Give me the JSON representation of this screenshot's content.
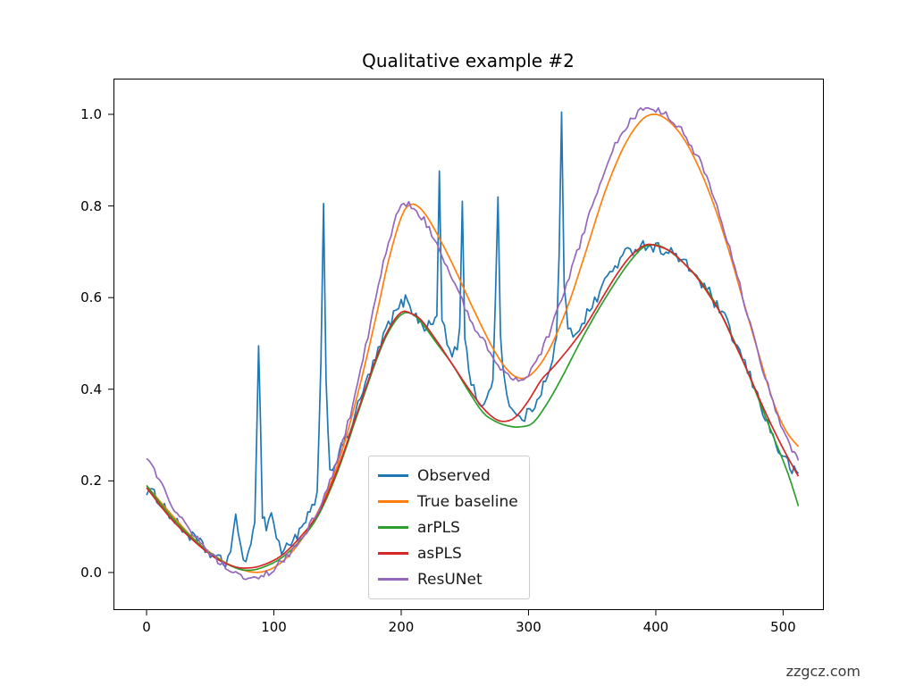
{
  "page": {
    "watermark": "zzgcz.com"
  },
  "chart_data": {
    "type": "line",
    "title": "Qualitative example #2",
    "xlabel": "",
    "ylabel": "",
    "grid": false,
    "xlim": [
      -26,
      532
    ],
    "ylim": [
      -0.082,
      1.078
    ],
    "xticks": [
      0,
      100,
      200,
      300,
      400,
      500
    ],
    "xtick_labels": [
      "0",
      "100",
      "200",
      "300",
      "400",
      "500"
    ],
    "yticks": [
      0.0,
      0.2,
      0.4,
      0.6,
      0.8,
      1.0
    ],
    "ytick_labels": [
      "0.0",
      "0.2",
      "0.4",
      "0.6",
      "0.8",
      "1.0"
    ],
    "legend": {
      "position": "lower center-left inside axes",
      "border_color": "#cccccc"
    },
    "axes_color": "#000000",
    "series": [
      {
        "name": "Observed",
        "color": "#1f77b4",
        "interp": "linear",
        "noise": 0.013,
        "points": [
          [
            0,
            0.18
          ],
          [
            8,
            0.165
          ],
          [
            16,
            0.135
          ],
          [
            24,
            0.105
          ],
          [
            32,
            0.085
          ],
          [
            40,
            0.068
          ],
          [
            48,
            0.045
          ],
          [
            56,
            0.028
          ],
          [
            62,
            0.02
          ],
          [
            66,
            0.05
          ],
          [
            70,
            0.115
          ],
          [
            74,
            0.06
          ],
          [
            78,
            0.02
          ],
          [
            82,
            0.05
          ],
          [
            85,
            0.12
          ],
          [
            88,
            0.5
          ],
          [
            91,
            0.13
          ],
          [
            94,
            0.1
          ],
          [
            98,
            0.13
          ],
          [
            102,
            0.08
          ],
          [
            106,
            0.045
          ],
          [
            110,
            0.055
          ],
          [
            115,
            0.075
          ],
          [
            120,
            0.085
          ],
          [
            125,
            0.11
          ],
          [
            130,
            0.14
          ],
          [
            134,
            0.17
          ],
          [
            137,
            0.45
          ],
          [
            139,
            0.795
          ],
          [
            141,
            0.42
          ],
          [
            144,
            0.22
          ],
          [
            148,
            0.24
          ],
          [
            153,
            0.27
          ],
          [
            158,
            0.3
          ],
          [
            164,
            0.345
          ],
          [
            170,
            0.395
          ],
          [
            176,
            0.44
          ],
          [
            182,
            0.48
          ],
          [
            188,
            0.53
          ],
          [
            194,
            0.56
          ],
          [
            200,
            0.585
          ],
          [
            205,
            0.6
          ],
          [
            210,
            0.565
          ],
          [
            215,
            0.545
          ],
          [
            220,
            0.535
          ],
          [
            225,
            0.545
          ],
          [
            228,
            0.56
          ],
          [
            230,
            0.875
          ],
          [
            232,
            0.56
          ],
          [
            236,
            0.5
          ],
          [
            240,
            0.47
          ],
          [
            244,
            0.49
          ],
          [
            246,
            0.54
          ],
          [
            248,
            0.81
          ],
          [
            250,
            0.52
          ],
          [
            253,
            0.44
          ],
          [
            257,
            0.4
          ],
          [
            261,
            0.375
          ],
          [
            265,
            0.36
          ],
          [
            269,
            0.385
          ],
          [
            272,
            0.43
          ],
          [
            274,
            0.6
          ],
          [
            276,
            0.815
          ],
          [
            278,
            0.52
          ],
          [
            281,
            0.42
          ],
          [
            285,
            0.37
          ],
          [
            289,
            0.345
          ],
          [
            293,
            0.335
          ],
          [
            297,
            0.34
          ],
          [
            301,
            0.35
          ],
          [
            305,
            0.37
          ],
          [
            310,
            0.4
          ],
          [
            315,
            0.425
          ],
          [
            319,
            0.46
          ],
          [
            322,
            0.52
          ],
          [
            324,
            0.7
          ],
          [
            326,
            1.0
          ],
          [
            328,
            0.62
          ],
          [
            331,
            0.53
          ],
          [
            335,
            0.52
          ],
          [
            340,
            0.535
          ],
          [
            346,
            0.565
          ],
          [
            352,
            0.59
          ],
          [
            358,
            0.625
          ],
          [
            364,
            0.655
          ],
          [
            370,
            0.675
          ],
          [
            376,
            0.695
          ],
          [
            382,
            0.705
          ],
          [
            388,
            0.715
          ],
          [
            394,
            0.715
          ],
          [
            400,
            0.71
          ],
          [
            406,
            0.705
          ],
          [
            412,
            0.7
          ],
          [
            418,
            0.685
          ],
          [
            424,
            0.67
          ],
          [
            430,
            0.655
          ],
          [
            436,
            0.63
          ],
          [
            442,
            0.61
          ],
          [
            448,
            0.58
          ],
          [
            454,
            0.555
          ],
          [
            460,
            0.515
          ],
          [
            466,
            0.48
          ],
          [
            472,
            0.44
          ],
          [
            478,
            0.4
          ],
          [
            484,
            0.355
          ],
          [
            490,
            0.31
          ],
          [
            496,
            0.27
          ],
          [
            502,
            0.245
          ],
          [
            507,
            0.225
          ],
          [
            512,
            0.21
          ]
        ]
      },
      {
        "name": "True baseline",
        "color": "#ff7f0e",
        "interp": "smooth",
        "noise": 0,
        "points": [
          [
            0,
            0.19
          ],
          [
            20,
            0.125
          ],
          [
            40,
            0.066
          ],
          [
            60,
            0.025
          ],
          [
            75,
            0.006
          ],
          [
            90,
            0.001
          ],
          [
            105,
            0.02
          ],
          [
            120,
            0.065
          ],
          [
            135,
            0.135
          ],
          [
            150,
            0.235
          ],
          [
            165,
            0.38
          ],
          [
            180,
            0.555
          ],
          [
            190,
            0.68
          ],
          [
            200,
            0.775
          ],
          [
            207,
            0.803
          ],
          [
            215,
            0.795
          ],
          [
            225,
            0.755
          ],
          [
            240,
            0.675
          ],
          [
            255,
            0.585
          ],
          [
            270,
            0.5
          ],
          [
            282,
            0.447
          ],
          [
            292,
            0.425
          ],
          [
            302,
            0.432
          ],
          [
            315,
            0.48
          ],
          [
            330,
            0.575
          ],
          [
            345,
            0.7
          ],
          [
            360,
            0.83
          ],
          [
            375,
            0.93
          ],
          [
            388,
            0.985
          ],
          [
            398,
            1.0
          ],
          [
            408,
            0.99
          ],
          [
            420,
            0.955
          ],
          [
            432,
            0.895
          ],
          [
            444,
            0.815
          ],
          [
            456,
            0.715
          ],
          [
            468,
            0.6
          ],
          [
            480,
            0.485
          ],
          [
            492,
            0.375
          ],
          [
            502,
            0.31
          ],
          [
            512,
            0.275
          ]
        ]
      },
      {
        "name": "arPLS",
        "color": "#2ca02c",
        "interp": "smooth",
        "noise": 0,
        "points": [
          [
            0,
            0.19
          ],
          [
            20,
            0.12
          ],
          [
            40,
            0.065
          ],
          [
            55,
            0.032
          ],
          [
            70,
            0.01
          ],
          [
            80,
            0.005
          ],
          [
            90,
            0.01
          ],
          [
            105,
            0.03
          ],
          [
            120,
            0.068
          ],
          [
            135,
            0.125
          ],
          [
            150,
            0.22
          ],
          [
            165,
            0.34
          ],
          [
            180,
            0.46
          ],
          [
            190,
            0.525
          ],
          [
            200,
            0.563
          ],
          [
            208,
            0.565
          ],
          [
            216,
            0.545
          ],
          [
            228,
            0.5
          ],
          [
            240,
            0.455
          ],
          [
            252,
            0.4
          ],
          [
            264,
            0.35
          ],
          [
            274,
            0.33
          ],
          [
            284,
            0.32
          ],
          [
            294,
            0.318
          ],
          [
            304,
            0.328
          ],
          [
            316,
            0.375
          ],
          [
            328,
            0.435
          ],
          [
            340,
            0.5
          ],
          [
            352,
            0.56
          ],
          [
            364,
            0.615
          ],
          [
            376,
            0.665
          ],
          [
            388,
            0.705
          ],
          [
            396,
            0.715
          ],
          [
            404,
            0.712
          ],
          [
            414,
            0.695
          ],
          [
            424,
            0.67
          ],
          [
            434,
            0.64
          ],
          [
            444,
            0.6
          ],
          [
            454,
            0.55
          ],
          [
            464,
            0.49
          ],
          [
            474,
            0.425
          ],
          [
            484,
            0.355
          ],
          [
            494,
            0.285
          ],
          [
            504,
            0.215
          ],
          [
            512,
            0.145
          ]
        ]
      },
      {
        "name": "asPLS",
        "color": "#d62728",
        "interp": "smooth",
        "noise": 0,
        "points": [
          [
            0,
            0.185
          ],
          [
            20,
            0.115
          ],
          [
            40,
            0.062
          ],
          [
            55,
            0.03
          ],
          [
            70,
            0.012
          ],
          [
            80,
            0.01
          ],
          [
            90,
            0.015
          ],
          [
            105,
            0.035
          ],
          [
            120,
            0.075
          ],
          [
            135,
            0.13
          ],
          [
            150,
            0.225
          ],
          [
            165,
            0.345
          ],
          [
            180,
            0.465
          ],
          [
            190,
            0.53
          ],
          [
            200,
            0.568
          ],
          [
            208,
            0.565
          ],
          [
            216,
            0.55
          ],
          [
            228,
            0.505
          ],
          [
            240,
            0.455
          ],
          [
            252,
            0.405
          ],
          [
            264,
            0.36
          ],
          [
            274,
            0.335
          ],
          [
            282,
            0.33
          ],
          [
            290,
            0.34
          ],
          [
            300,
            0.375
          ],
          [
            310,
            0.42
          ],
          [
            320,
            0.45
          ],
          [
            332,
            0.49
          ],
          [
            344,
            0.535
          ],
          [
            356,
            0.59
          ],
          [
            368,
            0.645
          ],
          [
            380,
            0.69
          ],
          [
            392,
            0.715
          ],
          [
            402,
            0.712
          ],
          [
            412,
            0.7
          ],
          [
            422,
            0.675
          ],
          [
            432,
            0.645
          ],
          [
            442,
            0.605
          ],
          [
            452,
            0.56
          ],
          [
            462,
            0.5
          ],
          [
            472,
            0.44
          ],
          [
            482,
            0.375
          ],
          [
            492,
            0.315
          ],
          [
            502,
            0.26
          ],
          [
            512,
            0.21
          ]
        ]
      },
      {
        "name": "ResUNet",
        "color": "#9467bd",
        "interp": "linear",
        "noise": 0.008,
        "points": [
          [
            0,
            0.245
          ],
          [
            8,
            0.215
          ],
          [
            16,
            0.17
          ],
          [
            24,
            0.13
          ],
          [
            32,
            0.1
          ],
          [
            40,
            0.075
          ],
          [
            48,
            0.05
          ],
          [
            56,
            0.025
          ],
          [
            64,
            0.01
          ],
          [
            72,
            -0.005
          ],
          [
            80,
            -0.01
          ],
          [
            88,
            -0.015
          ],
          [
            96,
            0.0
          ],
          [
            104,
            0.02
          ],
          [
            112,
            0.04
          ],
          [
            120,
            0.07
          ],
          [
            128,
            0.1
          ],
          [
            136,
            0.145
          ],
          [
            144,
            0.2
          ],
          [
            152,
            0.265
          ],
          [
            160,
            0.345
          ],
          [
            168,
            0.44
          ],
          [
            176,
            0.545
          ],
          [
            184,
            0.65
          ],
          [
            190,
            0.72
          ],
          [
            196,
            0.775
          ],
          [
            202,
            0.805
          ],
          [
            208,
            0.8
          ],
          [
            214,
            0.785
          ],
          [
            220,
            0.76
          ],
          [
            228,
            0.715
          ],
          [
            236,
            0.665
          ],
          [
            244,
            0.615
          ],
          [
            252,
            0.565
          ],
          [
            260,
            0.525
          ],
          [
            268,
            0.49
          ],
          [
            276,
            0.455
          ],
          [
            284,
            0.432
          ],
          [
            290,
            0.42
          ],
          [
            296,
            0.425
          ],
          [
            302,
            0.44
          ],
          [
            310,
            0.48
          ],
          [
            318,
            0.535
          ],
          [
            326,
            0.6
          ],
          [
            334,
            0.665
          ],
          [
            342,
            0.73
          ],
          [
            350,
            0.8
          ],
          [
            358,
            0.865
          ],
          [
            366,
            0.925
          ],
          [
            374,
            0.965
          ],
          [
            382,
            0.995
          ],
          [
            390,
            1.01
          ],
          [
            396,
            1.012
          ],
          [
            402,
            1.008
          ],
          [
            410,
            0.995
          ],
          [
            418,
            0.975
          ],
          [
            426,
            0.94
          ],
          [
            434,
            0.9
          ],
          [
            442,
            0.845
          ],
          [
            450,
            0.78
          ],
          [
            458,
            0.705
          ],
          [
            466,
            0.625
          ],
          [
            474,
            0.545
          ],
          [
            482,
            0.465
          ],
          [
            490,
            0.39
          ],
          [
            496,
            0.335
          ],
          [
            502,
            0.295
          ],
          [
            507,
            0.265
          ],
          [
            512,
            0.25
          ]
        ]
      }
    ]
  }
}
